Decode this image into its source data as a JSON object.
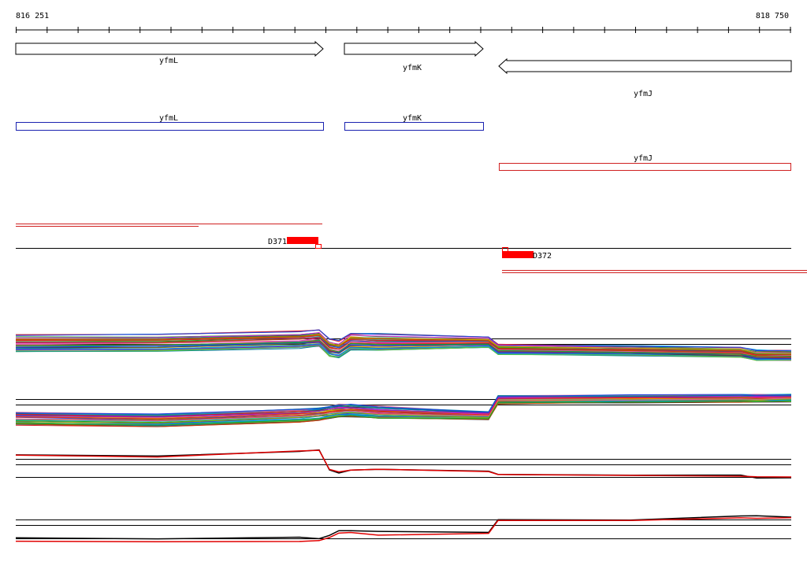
{
  "ruler": {
    "start": "816 251",
    "end": "818 750"
  },
  "genes": [
    {
      "label": "yfmL"
    },
    {
      "label": "yfmK"
    },
    {
      "label": "yfmJ"
    }
  ],
  "annotations": [
    {
      "label": "yfmL"
    },
    {
      "label": "yfmK"
    },
    {
      "label": "yfmJ"
    }
  ],
  "regions": [
    {
      "label": "D371"
    },
    {
      "label": "D372"
    }
  ]
}
